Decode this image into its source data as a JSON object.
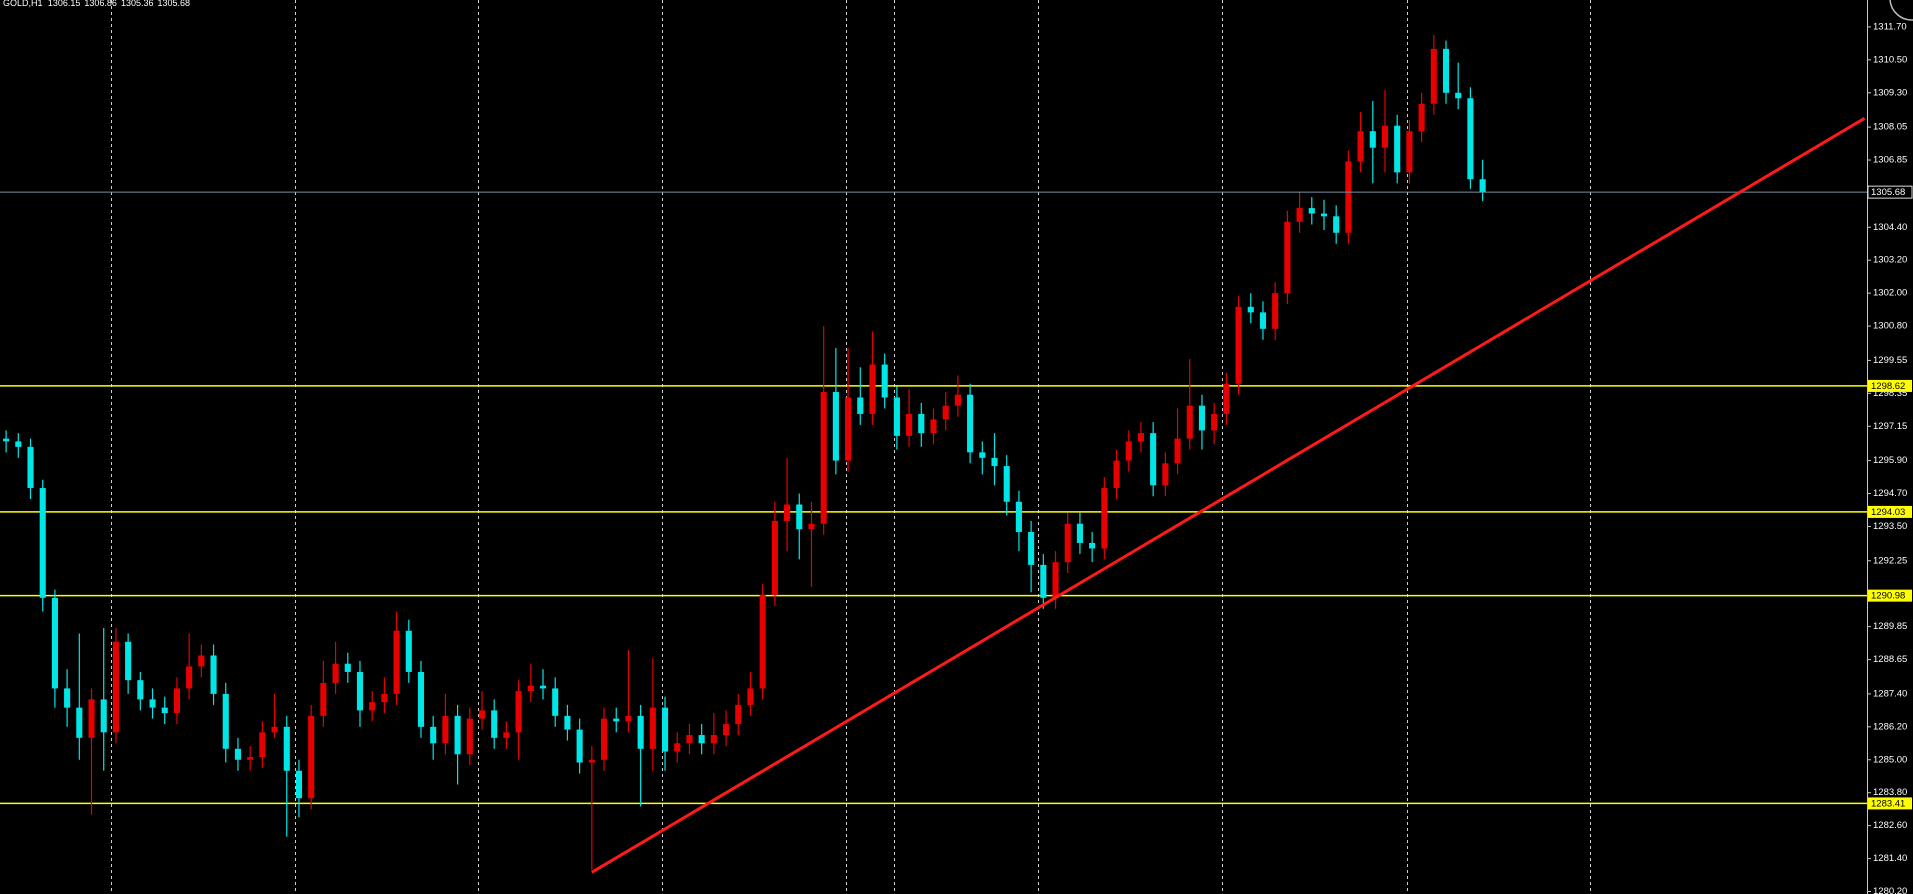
{
  "chart_data": {
    "type": "candlestick",
    "title": "GOLD,H1",
    "open": [
      1296.7,
      1296.6,
      1296.4,
      1294.9,
      1290.9,
      1287.6,
      1286.9,
      1285.8,
      1287.2,
      1286.0,
      1289.3,
      1287.9,
      1287.2,
      1286.9,
      1286.7,
      1287.6,
      1288.4,
      1288.8,
      1287.4,
      1285.4,
      1285.0,
      1285.1,
      1286.0,
      1286.2,
      1284.6,
      1283.6,
      1286.6,
      1287.8,
      1288.5,
      1288.2,
      1286.8,
      1287.1,
      1287.4,
      1289.7,
      1288.2,
      1286.2,
      1285.6,
      1286.6,
      1285.2,
      1286.5,
      1286.8,
      1285.8,
      1286.0,
      1287.5,
      1287.7,
      1287.6,
      1286.6,
      1286.1,
      1284.9,
      1285.0,
      1286.5,
      1286.4,
      1286.6,
      1285.4,
      1286.9,
      1285.3,
      1285.6,
      1285.9,
      1285.6,
      1285.9,
      1286.3,
      1287.0,
      1287.6,
      1291.0,
      1293.7,
      1294.3,
      1293.4,
      1293.6,
      1298.4,
      1295.9,
      1298.2,
      1297.6,
      1299.4,
      1298.2,
      1296.8,
      1297.6,
      1296.9,
      1297.4,
      1297.9,
      1298.3,
      1296.2,
      1296.0,
      1295.7,
      1294.4,
      1293.3,
      1292.1,
      1290.9,
      1292.2,
      1293.6,
      1292.9,
      1292.7,
      1294.9,
      1295.9,
      1296.6,
      1296.9,
      1295.0,
      1295.8,
      1296.7,
      1297.9,
      1297.0,
      1297.6,
      1298.7,
      1301.5,
      1301.3,
      1300.7,
      1302.0,
      1304.6,
      1305.1,
      1304.9,
      1304.8,
      1304.2,
      1306.8,
      1307.9,
      1307.3,
      1308.1,
      1306.4,
      1307.9,
      1308.9,
      1310.9,
      1309.3,
      1309.1,
      1306.15
    ],
    "high": [
      1297.0,
      1296.9,
      1296.7,
      1295.2,
      1291.2,
      1288.3,
      1289.6,
      1287.6,
      1289.8,
      1289.8,
      1289.6,
      1288.2,
      1287.6,
      1287.3,
      1288.0,
      1289.6,
      1289.2,
      1289.2,
      1287.8,
      1285.8,
      1285.5,
      1286.4,
      1287.4,
      1286.6,
      1285.0,
      1287.0,
      1288.6,
      1289.3,
      1288.9,
      1288.6,
      1287.5,
      1288.0,
      1290.4,
      1290.1,
      1288.6,
      1286.6,
      1287.4,
      1287.0,
      1286.9,
      1287.5,
      1287.2,
      1286.4,
      1287.9,
      1288.5,
      1288.3,
      1288.0,
      1287.0,
      1286.5,
      1285.5,
      1286.9,
      1286.9,
      1289.0,
      1287.0,
      1288.7,
      1287.3,
      1286.0,
      1286.3,
      1286.3,
      1286.7,
      1286.8,
      1287.4,
      1288.2,
      1291.4,
      1294.4,
      1296.0,
      1294.7,
      1294.4,
      1300.8,
      1300.0,
      1300.0,
      1299.3,
      1300.6,
      1299.8,
      1298.6,
      1298.5,
      1298.0,
      1297.8,
      1298.4,
      1299.0,
      1298.7,
      1296.6,
      1296.9,
      1296.1,
      1294.8,
      1293.7,
      1292.5,
      1292.6,
      1294.0,
      1294.0,
      1293.3,
      1295.3,
      1296.3,
      1297.0,
      1297.3,
      1297.3,
      1296.2,
      1297.8,
      1299.6,
      1298.3,
      1298.0,
      1299.1,
      1301.9,
      1302.0,
      1301.7,
      1302.4,
      1305.0,
      1305.7,
      1305.5,
      1305.4,
      1305.2,
      1307.2,
      1308.6,
      1309.0,
      1309.4,
      1308.5,
      1308.3,
      1309.3,
      1311.4,
      1311.2,
      1310.4,
      1309.5,
      1306.86
    ],
    "low": [
      1296.2,
      1296.0,
      1294.5,
      1290.4,
      1286.9,
      1286.2,
      1285.0,
      1283.0,
      1284.6,
      1285.6,
      1287.4,
      1286.8,
      1286.5,
      1286.3,
      1286.3,
      1287.2,
      1288.0,
      1287.0,
      1284.9,
      1284.6,
      1284.6,
      1284.7,
      1285.8,
      1282.2,
      1282.9,
      1283.2,
      1286.2,
      1287.4,
      1287.8,
      1286.2,
      1286.4,
      1286.7,
      1287.0,
      1287.8,
      1285.8,
      1285.0,
      1285.2,
      1284.1,
      1284.8,
      1286.1,
      1285.4,
      1285.4,
      1285.0,
      1287.1,
      1287.2,
      1286.2,
      1285.7,
      1284.5,
      1281.0,
      1284.6,
      1286.0,
      1286.0,
      1283.3,
      1284.6,
      1284.6,
      1284.9,
      1285.2,
      1285.2,
      1285.2,
      1285.5,
      1285.9,
      1286.6,
      1287.2,
      1290.6,
      1292.6,
      1292.3,
      1291.3,
      1293.2,
      1295.4,
      1295.5,
      1297.2,
      1297.2,
      1297.8,
      1296.3,
      1296.4,
      1296.4,
      1296.5,
      1297.0,
      1297.5,
      1295.8,
      1295.4,
      1295.0,
      1293.9,
      1292.6,
      1291.1,
      1290.5,
      1290.5,
      1291.8,
      1292.5,
      1292.2,
      1292.3,
      1294.5,
      1295.5,
      1296.2,
      1294.6,
      1294.6,
      1295.4,
      1296.3,
      1296.3,
      1296.5,
      1297.2,
      1298.3,
      1300.9,
      1300.3,
      1300.3,
      1301.6,
      1304.2,
      1304.5,
      1304.3,
      1303.8,
      1303.8,
      1306.4,
      1306.0,
      1306.4,
      1306.0,
      1306.0,
      1307.5,
      1308.5,
      1308.9,
      1308.7,
      1305.8,
      1305.36
    ],
    "close": [
      1296.6,
      1296.4,
      1294.9,
      1290.9,
      1287.6,
      1286.9,
      1285.8,
      1287.2,
      1286.0,
      1289.3,
      1287.9,
      1287.2,
      1286.9,
      1286.7,
      1287.6,
      1288.4,
      1288.8,
      1287.4,
      1285.4,
      1285.0,
      1285.1,
      1286.0,
      1286.2,
      1284.6,
      1283.6,
      1286.6,
      1287.8,
      1288.5,
      1288.2,
      1286.8,
      1287.1,
      1287.4,
      1289.7,
      1288.2,
      1286.2,
      1285.6,
      1286.6,
      1285.2,
      1286.5,
      1286.8,
      1285.8,
      1286.0,
      1287.5,
      1287.7,
      1287.6,
      1286.6,
      1286.1,
      1284.9,
      1285.0,
      1286.5,
      1286.4,
      1286.6,
      1285.4,
      1286.9,
      1285.3,
      1285.6,
      1285.9,
      1285.6,
      1285.9,
      1286.3,
      1287.0,
      1287.6,
      1291.0,
      1293.7,
      1294.3,
      1293.4,
      1293.6,
      1298.4,
      1295.9,
      1298.2,
      1297.6,
      1299.4,
      1298.2,
      1296.8,
      1297.6,
      1296.9,
      1297.4,
      1297.9,
      1298.3,
      1296.2,
      1296.0,
      1295.7,
      1294.4,
      1293.3,
      1292.1,
      1290.9,
      1292.2,
      1293.6,
      1292.9,
      1292.7,
      1294.9,
      1295.9,
      1296.6,
      1296.9,
      1295.0,
      1295.8,
      1296.7,
      1297.9,
      1297.0,
      1297.6,
      1298.7,
      1301.5,
      1301.3,
      1300.7,
      1302.0,
      1304.6,
      1305.1,
      1304.9,
      1304.8,
      1304.2,
      1306.8,
      1307.9,
      1307.3,
      1308.1,
      1306.4,
      1307.9,
      1308.9,
      1310.9,
      1309.3,
      1309.1,
      1306.15,
      1305.68
    ],
    "up_color": "#e60000",
    "down_color": "#00e6e6",
    "xlim": [
      -0.5,
      152.5
    ],
    "ylim": [
      1280.11,
      1312.68
    ],
    "yticks": [
      {
        "value": 1311.7,
        "label": "1311.70"
      },
      {
        "value": 1310.5,
        "label": "1310.50"
      },
      {
        "value": 1309.3,
        "label": "1309.30"
      },
      1308.05,
      1306.85,
      {
        "value": 1304.4,
        "label": "1304.40"
      },
      {
        "value": 1303.2,
        "label": "1303.20"
      },
      {
        "value": 1302,
        "label": "1302.00"
      },
      {
        "value": 1300.8,
        "label": "1300.80"
      },
      1299.55,
      1298.35,
      1297.15,
      {
        "value": 1295.9,
        "label": "1295.90"
      },
      {
        "value": 1294.7,
        "label": "1294.70"
      },
      {
        "value": 1293.5,
        "label": "1293.50"
      },
      1292.25,
      1289.85,
      1288.65,
      {
        "value": 1287.4,
        "label": "1287.40"
      },
      {
        "value": 1286.2,
        "label": "1286.20"
      },
      {
        "value": 1285,
        "label": "1285.00"
      },
      {
        "value": 1283.8,
        "label": "1283.80"
      },
      {
        "value": 1282.6,
        "label": "1282.60"
      },
      {
        "value": 1281.4,
        "label": "1281.40"
      },
      {
        "value": 1280.2,
        "label": "1280.20"
      }
    ],
    "levels": [
      {
        "value": 1298.62,
        "color": "#ffff00"
      },
      {
        "value": 1294.03,
        "color": "#ffff00"
      },
      {
        "value": 1290.98,
        "color": "#ffff00"
      },
      {
        "value": 1283.41,
        "color": "#ffff00"
      }
    ],
    "current_price_color": "#7892a8",
    "trendline": {
      "x": [
        48,
        152.3
      ],
      "y": [
        1280.9,
        1308.37
      ],
      "color": "#ff1a1a"
    }
  }
}
